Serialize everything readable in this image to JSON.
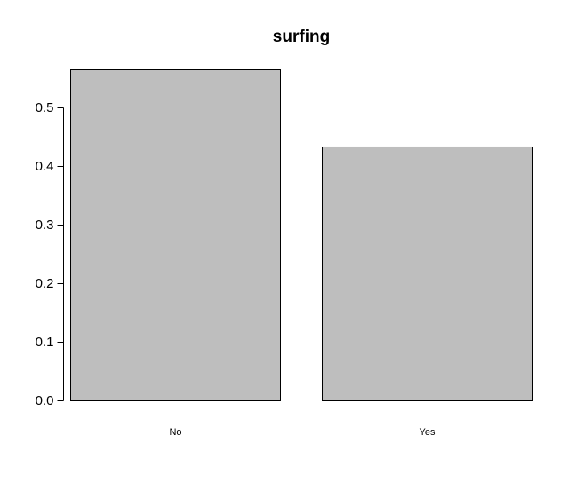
{
  "chart_data": {
    "type": "bar",
    "title": "surfing",
    "xlabel": "",
    "ylabel": "",
    "categories": [
      "No",
      "Yes"
    ],
    "values": [
      0.566,
      0.434
    ],
    "ylim": [
      0,
      0.566
    ],
    "y_ticks": [
      0.0,
      0.1,
      0.2,
      0.3,
      0.4,
      0.5
    ],
    "y_tick_labels": [
      "0.0",
      "0.1",
      "0.2",
      "0.3",
      "0.4",
      "0.5"
    ],
    "grid": false,
    "legend": "none",
    "colors": {
      "bar_fill": "#bebebe",
      "bar_stroke": "#000000",
      "axis": "#000000",
      "background": "#ffffff"
    }
  }
}
